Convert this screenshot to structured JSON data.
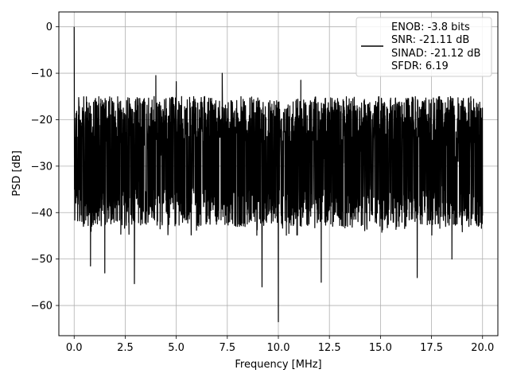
{
  "chart_data": {
    "type": "line",
    "title": "",
    "xlabel": "Frequency [MHz]",
    "ylabel": "PSD [dB]",
    "xlim": [
      -0.75,
      20.75
    ],
    "ylim": [
      -66.5,
      3.2
    ],
    "x_ticks": [
      0.0,
      2.5,
      5.0,
      7.5,
      10.0,
      12.5,
      15.0,
      17.5,
      20.0
    ],
    "x_tick_labels": [
      "0.0",
      "2.5",
      "5.0",
      "7.5",
      "10.0",
      "12.5",
      "15.0",
      "17.5",
      "20.0"
    ],
    "y_ticks": [
      0,
      -10,
      -20,
      -30,
      -40,
      -50,
      -60
    ],
    "y_tick_labels": [
      "0",
      "−10",
      "−20",
      "−30",
      "−40",
      "−50",
      "−60"
    ],
    "grid": true,
    "line_color": "#000000",
    "legend": {
      "placement": "top-right",
      "entries": [
        "ENOB: -3.8 bits",
        "SNR: -21.11 dB",
        "SINAD: -21.12 dB",
        "SFDR: 6.19"
      ]
    },
    "series": [
      {
        "noise_floor_range_db": [
          -45,
          -15
        ],
        "peaks": [
          {
            "x": 0.0,
            "y": 0.0
          },
          {
            "x": 4.0,
            "y": -10.5
          },
          {
            "x": 5.0,
            "y": -11.8
          },
          {
            "x": 7.25,
            "y": -10.0
          },
          {
            "x": 11.1,
            "y": -11.5
          }
        ],
        "troughs": [
          {
            "x": 0.8,
            "y": -51.5
          },
          {
            "x": 1.5,
            "y": -53.0
          },
          {
            "x": 2.95,
            "y": -55.3
          },
          {
            "x": 9.2,
            "y": -56.0
          },
          {
            "x": 10.0,
            "y": -63.5
          },
          {
            "x": 12.1,
            "y": -55.0
          },
          {
            "x": 16.8,
            "y": -54.0
          },
          {
            "x": 18.5,
            "y": -50.0
          }
        ]
      }
    ]
  }
}
